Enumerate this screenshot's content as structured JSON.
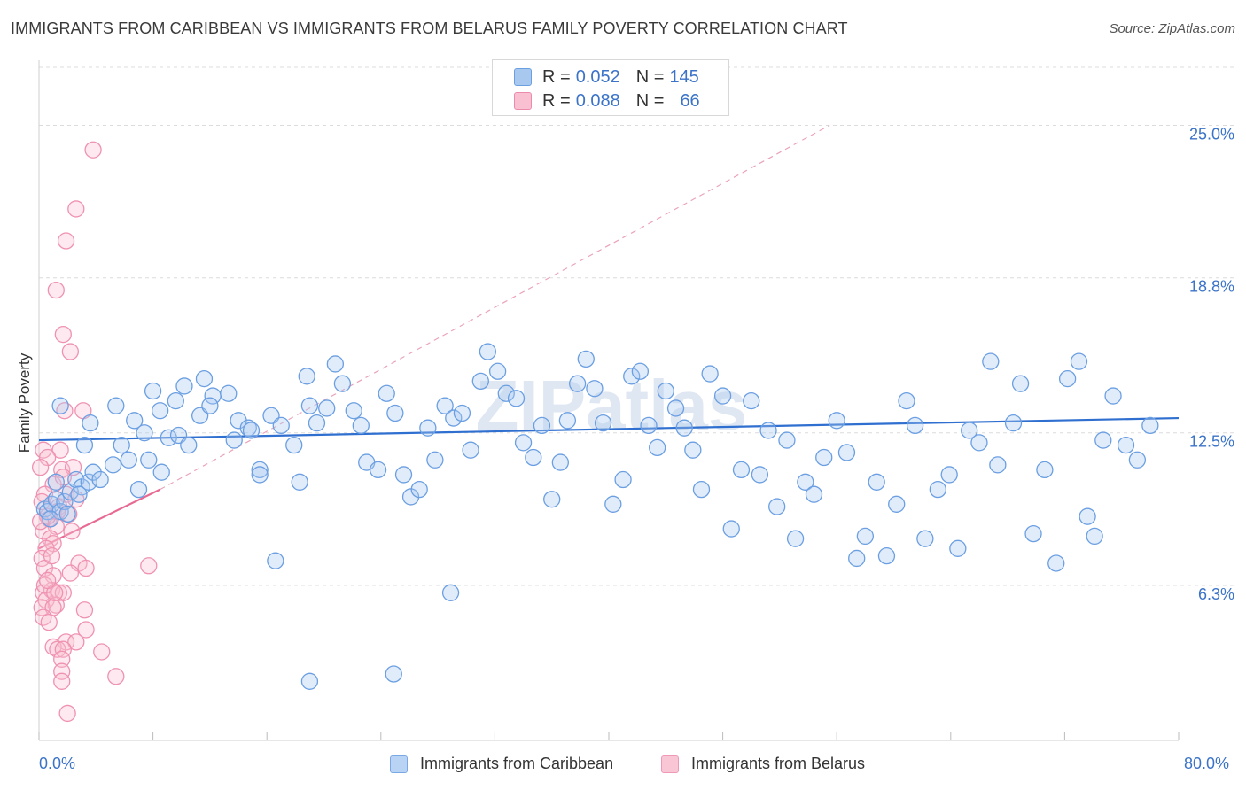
{
  "title": "IMMIGRANTS FROM CARIBBEAN VS IMMIGRANTS FROM BELARUS FAMILY POVERTY CORRELATION CHART",
  "source": "Source: ZipAtlas.com",
  "watermark": "ZIPatlas",
  "legend": {
    "rows": [
      {
        "r_label": "R =",
        "r_value": "0.052",
        "n_label": "N =",
        "n_value": "145",
        "color": "#a9c8f0",
        "border": "#6a9fe0"
      },
      {
        "r_label": "R =",
        "r_value": "0.088",
        "n_label": "N =",
        "n_value": "66",
        "color": "#f9c0d2",
        "border": "#ec8aab"
      }
    ]
  },
  "bottom_legend": [
    {
      "label": "Immigrants from Caribbean",
      "color": "#b9d3f4",
      "border": "#7aa8e4"
    },
    {
      "label": "Immigrants from Belarus",
      "color": "#f9c6d6",
      "border": "#ee9ab6"
    }
  ],
  "chart_data": {
    "type": "scatter",
    "title": "IMMIGRANTS FROM CARIBBEAN VS IMMIGRANTS FROM BELARUS FAMILY POVERTY CORRELATION CHART",
    "xlabel": "",
    "ylabel": "Family Poverty",
    "xlim": [
      0,
      80
    ],
    "ylim": [
      0,
      27.5
    ],
    "x_tick_labels": [
      "0.0%",
      "80.0%"
    ],
    "y_tick_labels": [
      "6.3%",
      "12.5%",
      "18.8%",
      "25.0%"
    ],
    "y_ticks": [
      6.3,
      12.5,
      18.8,
      25.0
    ],
    "grid": true,
    "legend_position": "top-center",
    "series": [
      {
        "name": "Immigrants from Caribbean",
        "color": "#5b93dc",
        "trend": {
          "x": [
            0,
            80
          ],
          "y": [
            12.2,
            13.1
          ]
        },
        "points": [
          [
            0.4,
            9.4
          ],
          [
            0.6,
            9.3
          ],
          [
            0.9,
            9.6
          ],
          [
            1.2,
            9.8
          ],
          [
            1.5,
            9.3
          ],
          [
            1.8,
            9.7
          ],
          [
            2.2,
            10.1
          ],
          [
            2.6,
            10.6
          ],
          [
            3.0,
            10.3
          ],
          [
            3.5,
            10.5
          ],
          [
            3.8,
            10.9
          ],
          [
            4.3,
            10.6
          ],
          [
            1.5,
            13.6
          ],
          [
            3.2,
            12.0
          ],
          [
            2.8,
            10.0
          ],
          [
            5.2,
            11.2
          ],
          [
            5.8,
            12.0
          ],
          [
            6.3,
            11.4
          ],
          [
            7.0,
            10.2
          ],
          [
            7.7,
            11.4
          ],
          [
            8.6,
            10.9
          ],
          [
            9.1,
            12.3
          ],
          [
            8.0,
            14.2
          ],
          [
            9.6,
            13.8
          ],
          [
            10.2,
            14.4
          ],
          [
            11.3,
            13.2
          ],
          [
            11.6,
            14.7
          ],
          [
            12.2,
            14.0
          ],
          [
            13.3,
            14.1
          ],
          [
            14.0,
            13.0
          ],
          [
            14.7,
            12.7
          ],
          [
            15.5,
            11.0
          ],
          [
            15.5,
            10.8
          ],
          [
            16.3,
            13.2
          ],
          [
            17.0,
            12.8
          ],
          [
            17.9,
            12.0
          ],
          [
            18.3,
            10.5
          ],
          [
            18.8,
            14.8
          ],
          [
            19.0,
            13.6
          ],
          [
            19.5,
            12.9
          ],
          [
            20.2,
            13.5
          ],
          [
            20.8,
            15.3
          ],
          [
            21.3,
            14.5
          ],
          [
            22.1,
            13.4
          ],
          [
            22.6,
            12.8
          ],
          [
            23.0,
            11.3
          ],
          [
            23.8,
            11.0
          ],
          [
            24.4,
            14.1
          ],
          [
            25.0,
            13.3
          ],
          [
            25.6,
            10.8
          ],
          [
            26.1,
            9.9
          ],
          [
            26.7,
            10.2
          ],
          [
            27.3,
            12.7
          ],
          [
            27.8,
            11.4
          ],
          [
            28.5,
            13.6
          ],
          [
            29.1,
            13.1
          ],
          [
            29.7,
            13.3
          ],
          [
            30.3,
            11.8
          ],
          [
            31.0,
            14.6
          ],
          [
            31.5,
            15.8
          ],
          [
            32.2,
            15.0
          ],
          [
            32.8,
            14.1
          ],
          [
            33.5,
            13.9
          ],
          [
            34.0,
            12.1
          ],
          [
            34.7,
            11.5
          ],
          [
            35.3,
            12.8
          ],
          [
            36.0,
            9.8
          ],
          [
            36.6,
            11.3
          ],
          [
            37.1,
            13.0
          ],
          [
            37.8,
            14.5
          ],
          [
            38.4,
            15.5
          ],
          [
            39.0,
            14.3
          ],
          [
            39.6,
            12.9
          ],
          [
            40.3,
            9.6
          ],
          [
            41.0,
            10.6
          ],
          [
            41.6,
            14.8
          ],
          [
            42.2,
            15.0
          ],
          [
            42.8,
            12.8
          ],
          [
            43.4,
            11.9
          ],
          [
            44.0,
            14.2
          ],
          [
            44.7,
            13.5
          ],
          [
            45.3,
            12.7
          ],
          [
            45.9,
            11.8
          ],
          [
            46.5,
            10.2
          ],
          [
            47.1,
            14.9
          ],
          [
            48.0,
            14.0
          ],
          [
            48.6,
            8.6
          ],
          [
            49.3,
            11.0
          ],
          [
            50.0,
            13.8
          ],
          [
            50.6,
            10.8
          ],
          [
            51.2,
            12.6
          ],
          [
            51.8,
            9.5
          ],
          [
            52.5,
            12.2
          ],
          [
            53.1,
            8.2
          ],
          [
            53.8,
            10.5
          ],
          [
            54.4,
            10.0
          ],
          [
            55.1,
            11.5
          ],
          [
            56.0,
            13.0
          ],
          [
            56.7,
            11.7
          ],
          [
            57.4,
            7.4
          ],
          [
            58.0,
            8.3
          ],
          [
            58.8,
            10.5
          ],
          [
            59.5,
            7.5
          ],
          [
            60.2,
            9.6
          ],
          [
            60.9,
            13.8
          ],
          [
            61.5,
            12.8
          ],
          [
            62.2,
            8.2
          ],
          [
            63.1,
            10.2
          ],
          [
            63.9,
            10.8
          ],
          [
            64.5,
            7.8
          ],
          [
            65.3,
            12.6
          ],
          [
            66.0,
            12.1
          ],
          [
            66.8,
            15.4
          ],
          [
            67.3,
            11.2
          ],
          [
            68.4,
            12.9
          ],
          [
            68.9,
            14.5
          ],
          [
            69.8,
            8.4
          ],
          [
            70.6,
            11.0
          ],
          [
            71.4,
            7.2
          ],
          [
            72.2,
            14.7
          ],
          [
            73.0,
            15.4
          ],
          [
            73.6,
            9.1
          ],
          [
            74.1,
            8.3
          ],
          [
            74.7,
            12.2
          ],
          [
            75.4,
            14.0
          ],
          [
            76.3,
            12.0
          ],
          [
            77.1,
            11.4
          ],
          [
            78.0,
            12.8
          ],
          [
            28.9,
            6.0
          ],
          [
            19.0,
            2.4
          ],
          [
            24.9,
            2.7
          ],
          [
            16.6,
            7.3
          ],
          [
            8.5,
            13.4
          ],
          [
            9.8,
            12.4
          ],
          [
            10.5,
            12.0
          ],
          [
            12.0,
            13.6
          ],
          [
            13.7,
            12.2
          ],
          [
            14.9,
            12.6
          ],
          [
            3.6,
            12.9
          ],
          [
            5.4,
            13.6
          ],
          [
            6.7,
            13.0
          ],
          [
            7.4,
            12.5
          ],
          [
            1.2,
            10.5
          ],
          [
            2.0,
            9.2
          ],
          [
            0.8,
            9.0
          ]
        ]
      },
      {
        "name": "Immigrants from Belarus",
        "color": "#ec7fa3",
        "trend": {
          "x": [
            0,
            8.5
          ],
          "y": [
            7.8,
            10.2
          ]
        },
        "trend_ext": {
          "x": [
            8.5,
            55.5
          ],
          "y": [
            10.2,
            25.0
          ]
        },
        "points": [
          [
            3.8,
            24.0
          ],
          [
            2.6,
            21.6
          ],
          [
            1.9,
            20.3
          ],
          [
            1.2,
            18.3
          ],
          [
            1.7,
            16.5
          ],
          [
            2.2,
            15.8
          ],
          [
            1.8,
            13.4
          ],
          [
            3.1,
            13.4
          ],
          [
            0.3,
            11.8
          ],
          [
            1.5,
            11.8
          ],
          [
            0.6,
            11.5
          ],
          [
            1.6,
            11.0
          ],
          [
            2.4,
            11.1
          ],
          [
            0.1,
            11.1
          ],
          [
            1.0,
            10.4
          ],
          [
            1.7,
            10.7
          ],
          [
            0.4,
            10.0
          ],
          [
            1.9,
            10.0
          ],
          [
            0.2,
            9.7
          ],
          [
            1.4,
            9.5
          ],
          [
            2.1,
            9.2
          ],
          [
            0.7,
            9.0
          ],
          [
            1.2,
            8.7
          ],
          [
            0.3,
            8.5
          ],
          [
            2.3,
            8.5
          ],
          [
            0.8,
            8.2
          ],
          [
            1.0,
            8.0
          ],
          [
            0.5,
            7.8
          ],
          [
            0.2,
            7.4
          ],
          [
            2.8,
            7.2
          ],
          [
            7.7,
            7.1
          ],
          [
            0.4,
            7.0
          ],
          [
            1.0,
            6.7
          ],
          [
            0.3,
            6.0
          ],
          [
            0.9,
            6.1
          ],
          [
            1.4,
            6.0
          ],
          [
            1.7,
            6.0
          ],
          [
            0.5,
            5.7
          ],
          [
            1.2,
            5.5
          ],
          [
            0.2,
            5.4
          ],
          [
            1.0,
            5.4
          ],
          [
            3.2,
            5.3
          ],
          [
            0.3,
            5.0
          ],
          [
            0.7,
            4.8
          ],
          [
            3.3,
            4.5
          ],
          [
            1.9,
            4.0
          ],
          [
            2.6,
            4.0
          ],
          [
            1.0,
            3.8
          ],
          [
            1.3,
            3.7
          ],
          [
            1.7,
            3.7
          ],
          [
            4.4,
            3.6
          ],
          [
            1.6,
            3.3
          ],
          [
            1.6,
            2.8
          ],
          [
            5.4,
            2.6
          ],
          [
            1.6,
            2.4
          ],
          [
            2.0,
            1.1
          ],
          [
            0.6,
            9.1
          ],
          [
            1.3,
            9.3
          ],
          [
            2.6,
            9.8
          ],
          [
            0.1,
            8.9
          ],
          [
            0.9,
            7.5
          ],
          [
            0.4,
            6.3
          ],
          [
            2.2,
            6.8
          ],
          [
            1.1,
            6.0
          ],
          [
            0.6,
            6.5
          ],
          [
            3.3,
            7.0
          ]
        ]
      }
    ]
  }
}
